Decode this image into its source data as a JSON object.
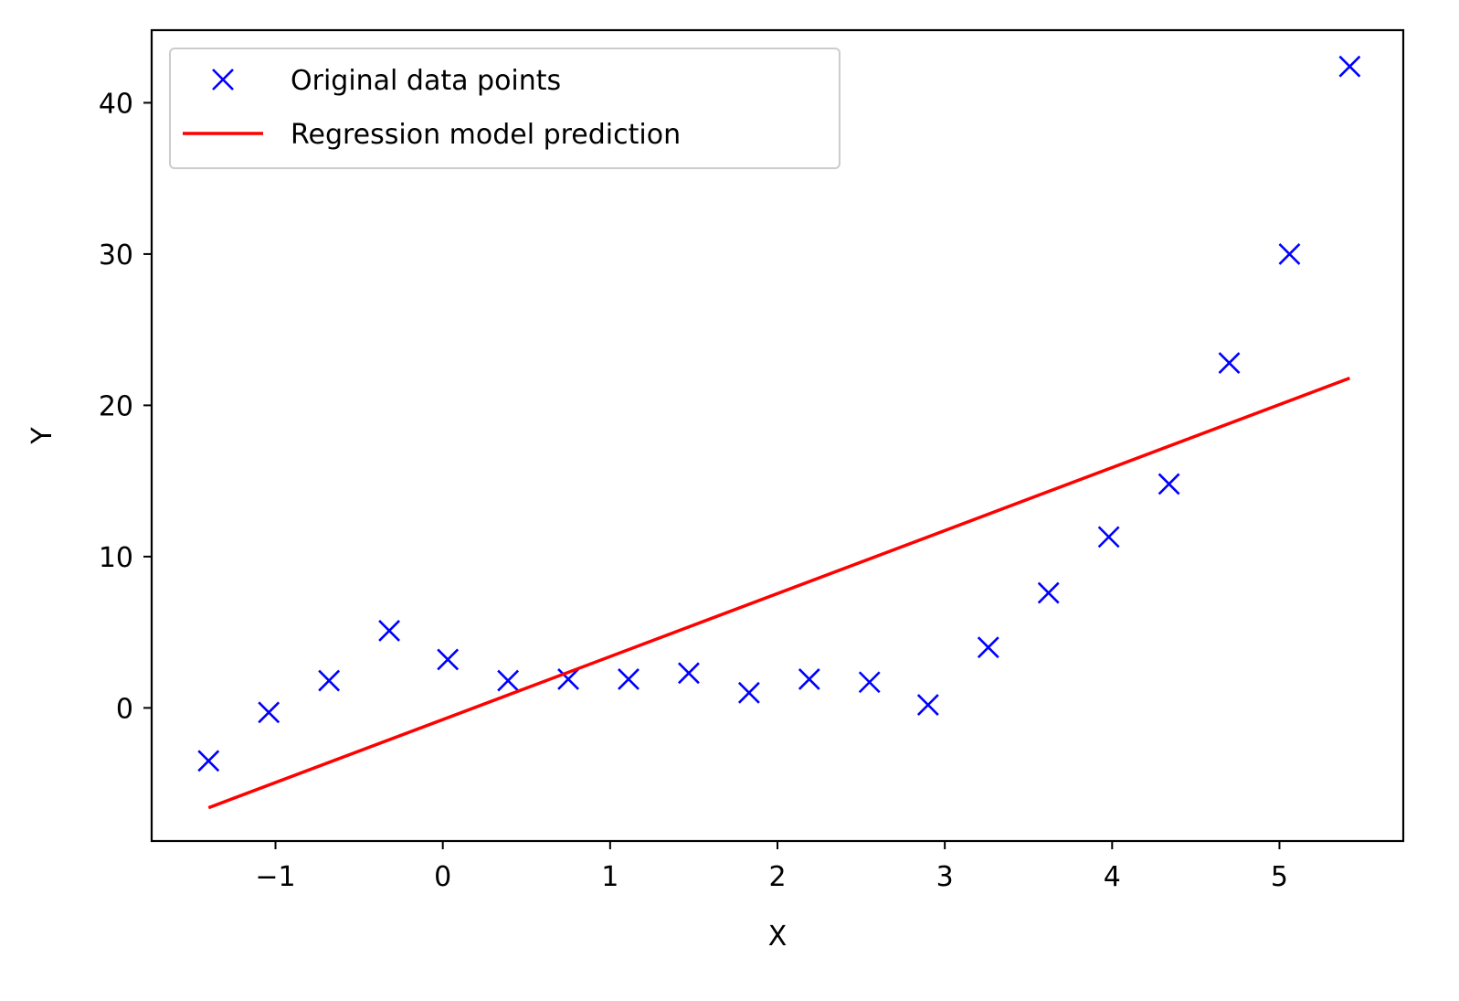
{
  "chart_data": {
    "type": "scatter",
    "title": "",
    "xlabel": "X",
    "ylabel": "Y",
    "xlim": [
      -1.74,
      5.74
    ],
    "ylim": [
      -8.8,
      44.8
    ],
    "xticks": [
      -1,
      0,
      1,
      2,
      3,
      4,
      5
    ],
    "xtick_labels": [
      "−1",
      "0",
      "1",
      "2",
      "3",
      "4",
      "5"
    ],
    "yticks": [
      0,
      10,
      20,
      30,
      40
    ],
    "ytick_labels": [
      "0",
      "10",
      "20",
      "30",
      "40"
    ],
    "grid": false,
    "legend_position": "top-left",
    "series": [
      {
        "name": "Original data points",
        "kind": "markers",
        "marker": "x",
        "color": "#0000ff",
        "x": [
          -1.4,
          -1.04,
          -0.68,
          -0.32,
          0.03,
          0.39,
          0.75,
          1.11,
          1.47,
          1.83,
          2.19,
          2.55,
          2.9,
          3.26,
          3.62,
          3.98,
          4.34,
          4.7,
          5.06,
          5.42
        ],
        "y": [
          -3.5,
          -0.3,
          1.8,
          5.1,
          3.2,
          1.8,
          1.9,
          1.9,
          2.3,
          1.0,
          1.9,
          1.7,
          0.2,
          4.0,
          7.6,
          11.3,
          14.8,
          22.8,
          30.0,
          42.4
        ]
      },
      {
        "name": "Regression model prediction",
        "kind": "line",
        "color": "#ff0000",
        "x": [
          -1.4,
          5.42
        ],
        "y": [
          -6.6,
          21.8
        ]
      }
    ]
  }
}
